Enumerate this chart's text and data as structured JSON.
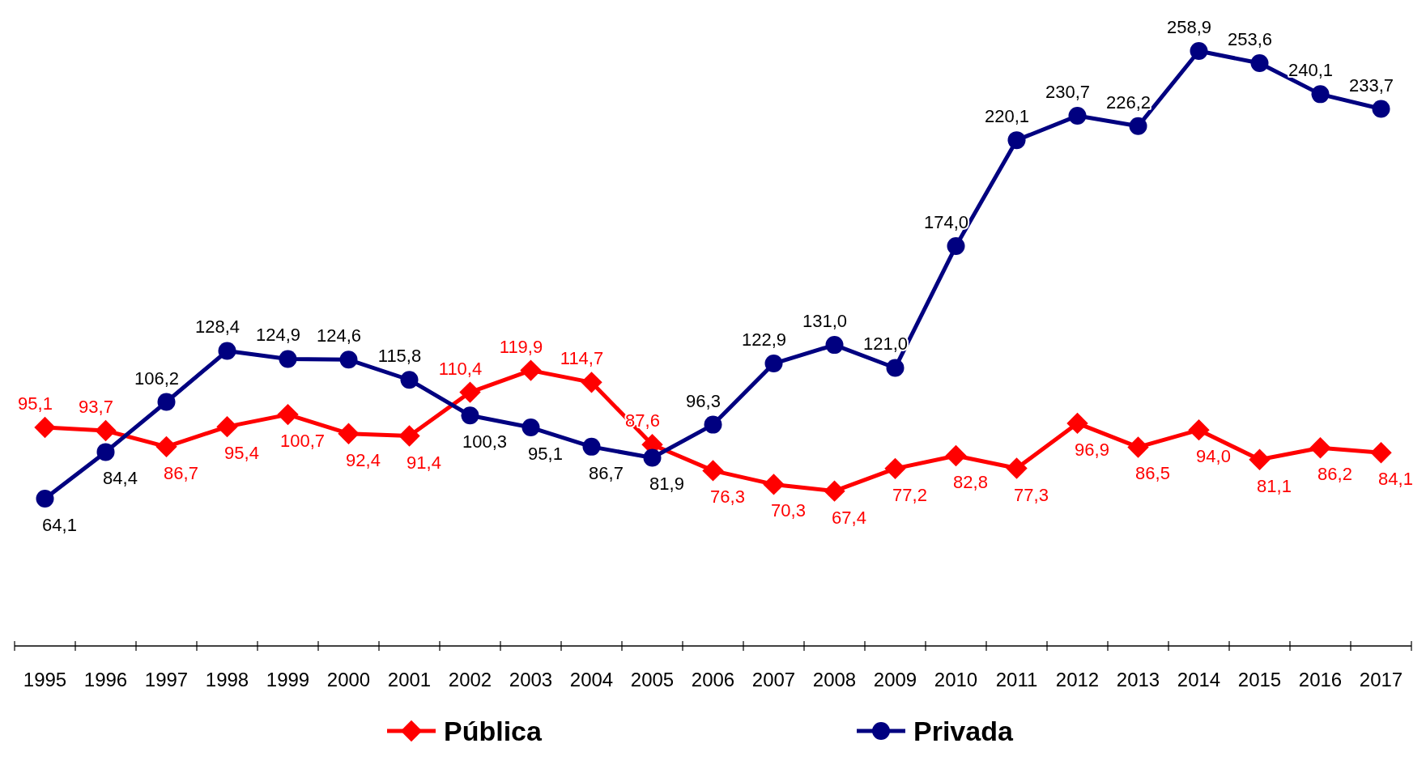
{
  "chart_data": {
    "type": "line",
    "categories": [
      "1995",
      "1996",
      "1997",
      "1998",
      "1999",
      "2000",
      "2001",
      "2002",
      "2003",
      "2004",
      "2005",
      "2006",
      "2007",
      "2008",
      "2009",
      "2010",
      "2011",
      "2012",
      "2013",
      "2014",
      "2015",
      "2016",
      "2017"
    ],
    "series": [
      {
        "name": "Pública",
        "color": "#ff0000",
        "marker": "diamond",
        "values": [
          95.1,
          93.7,
          86.7,
          95.4,
          100.7,
          92.4,
          91.4,
          110.4,
          119.9,
          114.7,
          87.6,
          76.3,
          70.3,
          67.4,
          77.2,
          82.8,
          77.3,
          96.9,
          86.5,
          94.0,
          81.1,
          86.2,
          84.1
        ],
        "value_labels": [
          "95,1",
          "93,7",
          "86,7",
          "95,4",
          "100,7",
          "92,4",
          "91,4",
          "110,4",
          "119,9",
          "114,7",
          "87,6",
          "76,3",
          "70,3",
          "67,4",
          "77,2",
          "82,8",
          "77,3",
          "96,9",
          "86,5",
          "94,0",
          "81,1",
          "86,2",
          "84,1"
        ]
      },
      {
        "name": "Privada",
        "color": "#000080",
        "marker": "circle",
        "values": [
          64.1,
          84.4,
          106.2,
          128.4,
          124.9,
          124.6,
          115.8,
          100.3,
          95.1,
          86.7,
          81.9,
          96.3,
          122.9,
          131.0,
          121.0,
          174.0,
          220.1,
          230.7,
          226.2,
          258.9,
          253.6,
          240.1,
          233.7
        ],
        "value_labels": [
          "64,1",
          "84,4",
          "106,2",
          "128,4",
          "124,9",
          "124,6",
          "115,8",
          "100,3",
          "95,1",
          "86,7",
          "81,9",
          "96,3",
          "122,9",
          "131,0",
          "121,0",
          "174,0",
          "220,1",
          "230,7",
          "226,2",
          "258,9",
          "253,6",
          "240,1",
          "233,7"
        ]
      }
    ],
    "tick_labels": "x",
    "legend": "bottom",
    "line_style": "solid"
  }
}
